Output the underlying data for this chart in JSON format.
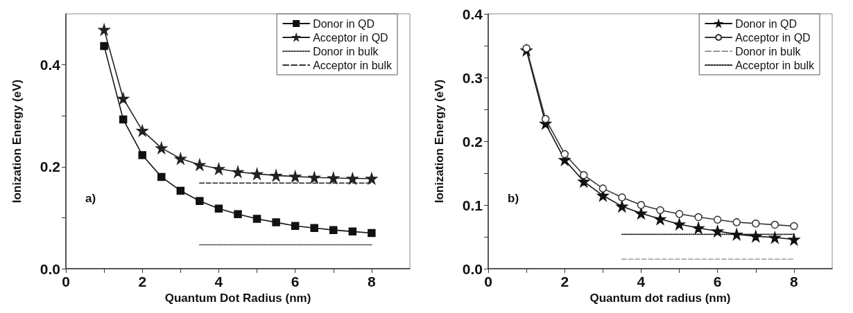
{
  "chart_data": [
    {
      "type": "line",
      "xlabel": "Quantum Dot Radius (nm)",
      "ylabel": "Ionization Energy (eV)",
      "annotations": [
        "a)"
      ],
      "x": [
        1,
        1.5,
        2,
        2.5,
        3,
        3.5,
        4,
        4.5,
        5,
        5.5,
        6,
        6.5,
        7,
        7.5,
        8
      ],
      "xlim": [
        0,
        9
      ],
      "xticks": [
        0,
        {
          "value": 1,
          "label": null
        },
        2,
        {
          "value": 3,
          "label": null
        },
        4,
        {
          "value": 5,
          "label": null
        },
        6,
        {
          "value": 7,
          "label": null
        },
        8
      ],
      "ylim": [
        0,
        0.5
      ],
      "yticks": [
        {
          "value": 0,
          "label": "0.0"
        },
        {
          "value": 0.1,
          "label": null
        },
        0.2,
        {
          "value": 0.3,
          "label": null
        },
        0.4
      ],
      "grid": false,
      "legend": "top right",
      "series": [
        {
          "name": "Donor in QD",
          "color": "#111111",
          "marker": "square",
          "line_style": "solid",
          "values": [
            0.437,
            0.293,
            0.223,
            0.18,
            0.153,
            0.133,
            0.118,
            0.107,
            0.098,
            0.091,
            0.084,
            0.08,
            0.076,
            0.073,
            0.07
          ]
        },
        {
          "name": "Acceptor in QD",
          "color": "#222222",
          "marker": "star",
          "line_style": "solid",
          "values": [
            0.469,
            0.334,
            0.271,
            0.237,
            0.216,
            0.204,
            0.196,
            0.19,
            0.186,
            0.183,
            0.181,
            0.179,
            0.178,
            0.177,
            0.177
          ]
        },
        {
          "name": "Donor in bulk",
          "color": "#444444",
          "marker": "none",
          "line_style": "dotted",
          "values": [
            null,
            null,
            null,
            null,
            null,
            0.047,
            0.047,
            0.047,
            0.047,
            0.047,
            0.047,
            0.047,
            0.047,
            0.047,
            0.047
          ]
        },
        {
          "name": "Acceptor in bulk",
          "color": "#333333",
          "marker": "none",
          "line_style": "dashed",
          "values": [
            null,
            null,
            null,
            null,
            null,
            0.168,
            0.168,
            0.168,
            0.168,
            0.168,
            0.168,
            0.168,
            0.168,
            0.168,
            0.168
          ]
        }
      ]
    },
    {
      "type": "line",
      "xlabel": "Quantum dot radius (nm)",
      "ylabel": "Ionization Energy (eV)",
      "annotations": [
        "b)"
      ],
      "x": [
        1,
        1.5,
        2,
        2.5,
        3,
        3.5,
        4,
        4.5,
        5,
        5.5,
        6,
        6.5,
        7,
        7.5,
        8
      ],
      "xlim": [
        0,
        9
      ],
      "xticks": [
        0,
        {
          "value": 1,
          "label": null
        },
        2,
        {
          "value": 3,
          "label": null
        },
        4,
        {
          "value": 5,
          "label": null
        },
        6,
        {
          "value": 7,
          "label": null
        },
        8
      ],
      "ylim": [
        0,
        0.4
      ],
      "yticks": [
        {
          "value": 0,
          "label": "0.0"
        },
        {
          "value": 0.05,
          "label": null
        },
        0.1,
        {
          "value": 0.15,
          "label": null
        },
        0.2,
        {
          "value": 0.25,
          "label": null
        },
        0.3,
        {
          "value": 0.35,
          "label": null
        },
        0.4
      ],
      "grid": false,
      "legend": "top right",
      "series": [
        {
          "name": "Donor in QD",
          "color": "#111111",
          "marker": "star",
          "line_style": "solid",
          "values": [
            0.343,
            0.228,
            0.171,
            0.137,
            0.115,
            0.098,
            0.087,
            0.078,
            0.07,
            0.064,
            0.059,
            0.054,
            0.051,
            0.049,
            0.046
          ]
        },
        {
          "name": "Acceptor in QD",
          "color": "#333333",
          "marker": "circle",
          "line_style": "solid",
          "values": [
            0.346,
            0.235,
            0.18,
            0.147,
            0.126,
            0.112,
            0.1,
            0.092,
            0.086,
            0.081,
            0.077,
            0.073,
            0.071,
            0.069,
            0.067
          ]
        },
        {
          "name": "Donor in bulk",
          "color": "#999999",
          "marker": "none",
          "line_style": "dashed",
          "values": [
            null,
            null,
            null,
            null,
            null,
            0.015,
            0.015,
            0.015,
            0.015,
            0.015,
            0.015,
            0.015,
            0.015,
            0.015,
            0.015
          ]
        },
        {
          "name": "Acceptor in bulk",
          "color": "#222222",
          "marker": "none",
          "line_style": "dotted",
          "values": [
            null,
            null,
            null,
            null,
            null,
            0.054,
            0.054,
            0.054,
            0.054,
            0.054,
            0.054,
            0.054,
            0.054,
            0.054,
            0.054
          ]
        }
      ]
    }
  ]
}
